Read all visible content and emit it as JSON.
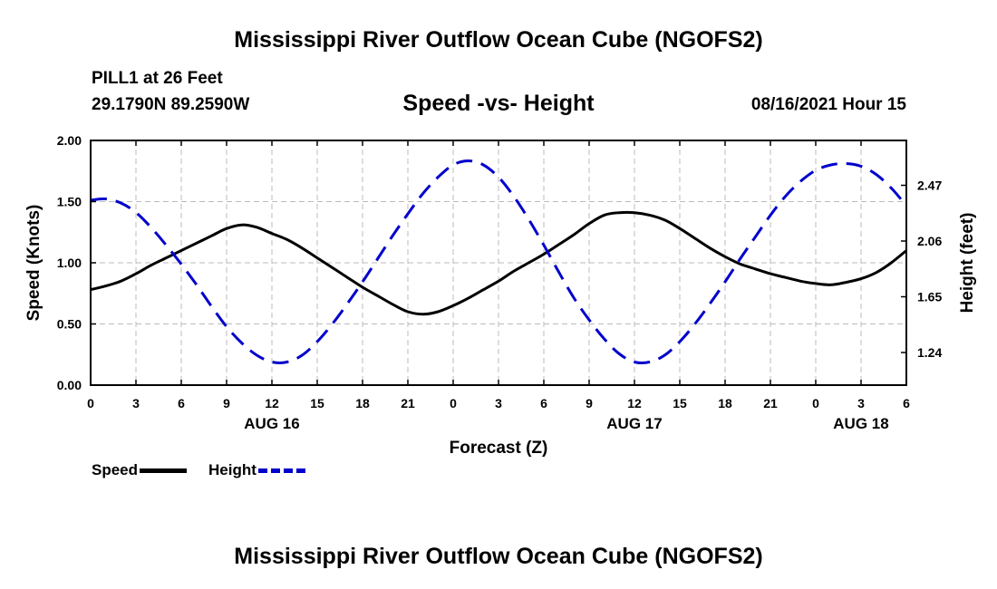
{
  "header": {
    "title": "Mississippi River Outflow Ocean Cube (NGOFS2)",
    "station": "PILL1 at 26 Feet",
    "coordinates": "29.1790N  89.2590W",
    "subtitle": "Speed -vs- Height",
    "datetime": "08/16/2021 Hour 15"
  },
  "footer": {
    "title": "Mississippi River Outflow Ocean Cube (NGOFS2)"
  },
  "legend": {
    "speed_label": "Speed",
    "height_label": "Height"
  },
  "colors": {
    "speed": "#000000",
    "height": "#0000cc",
    "grid": "#bbbbbb"
  },
  "chart_data": {
    "type": "line",
    "title": "Speed -vs- Height",
    "xlabel": "Forecast (Z)",
    "ylabel": "Speed (Knots)",
    "y2label": "Height (feet)",
    "grid": true,
    "legend_position": "bottom-left",
    "xlim": [
      0,
      54
    ],
    "ylim": [
      0,
      2.0
    ],
    "y2lim": [
      1.0,
      2.8
    ],
    "x_ticks": [
      0,
      3,
      6,
      9,
      12,
      15,
      18,
      21,
      24,
      27,
      30,
      33,
      36,
      39,
      42,
      45,
      48,
      51,
      54
    ],
    "x_tick_labels": [
      "0",
      "3",
      "6",
      "9",
      "12",
      "15",
      "18",
      "21",
      "0",
      "3",
      "6",
      "9",
      "12",
      "15",
      "18",
      "21",
      "0",
      "3",
      "6"
    ],
    "date_labels": [
      {
        "x": 12,
        "label": "AUG 16"
      },
      {
        "x": 36,
        "label": "AUG 17"
      },
      {
        "x": 51,
        "label": "AUG 18"
      }
    ],
    "y_ticks": [
      0,
      0.5,
      1.0,
      1.5,
      2.0
    ],
    "y_tick_labels": [
      "0.00",
      "0.50",
      "1.00",
      "1.50",
      "2.00"
    ],
    "y2_ticks": [
      1.24,
      1.65,
      2.06,
      2.47
    ],
    "y2_tick_labels": [
      "1.24",
      "1.65",
      "2.06",
      "2.47"
    ],
    "series": [
      {
        "name": "Speed",
        "axis": "left",
        "style": "solid",
        "x": [
          0,
          1,
          2,
          3,
          4,
          5,
          6,
          7,
          8,
          9,
          10,
          11,
          12,
          13,
          14,
          15,
          16,
          17,
          18,
          19,
          20,
          21,
          22,
          23,
          24,
          25,
          26,
          27,
          28,
          29,
          30,
          31,
          32,
          33,
          34,
          35,
          36,
          37,
          38,
          39,
          40,
          41,
          42,
          43,
          44,
          45,
          46,
          47,
          48,
          49,
          50,
          51,
          52,
          53,
          54
        ],
        "values": [
          0.78,
          0.81,
          0.85,
          0.91,
          0.98,
          1.04,
          1.1,
          1.16,
          1.22,
          1.28,
          1.31,
          1.29,
          1.24,
          1.19,
          1.12,
          1.04,
          0.96,
          0.88,
          0.8,
          0.73,
          0.66,
          0.6,
          0.58,
          0.6,
          0.65,
          0.71,
          0.78,
          0.85,
          0.93,
          1.0,
          1.07,
          1.15,
          1.23,
          1.32,
          1.39,
          1.41,
          1.41,
          1.39,
          1.35,
          1.28,
          1.2,
          1.12,
          1.05,
          0.99,
          0.95,
          0.91,
          0.88,
          0.85,
          0.83,
          0.82,
          0.84,
          0.87,
          0.92,
          1.0,
          1.1
        ]
      },
      {
        "name": "Height",
        "axis": "right",
        "style": "dashed",
        "x": [
          0,
          1,
          2,
          3,
          4,
          5,
          6,
          7,
          8,
          9,
          10,
          11,
          12,
          13,
          14,
          15,
          16,
          17,
          18,
          19,
          20,
          21,
          22,
          23,
          24,
          25,
          26,
          27,
          28,
          29,
          30,
          31,
          32,
          33,
          34,
          35,
          36,
          37,
          38,
          39,
          40,
          41,
          42,
          43,
          44,
          45,
          46,
          47,
          48,
          49,
          50,
          51,
          52,
          53,
          54
        ],
        "values": [
          2.36,
          2.37,
          2.34,
          2.27,
          2.16,
          2.03,
          1.89,
          1.74,
          1.58,
          1.43,
          1.31,
          1.22,
          1.17,
          1.17,
          1.22,
          1.32,
          1.45,
          1.6,
          1.76,
          1.93,
          2.1,
          2.26,
          2.41,
          2.53,
          2.62,
          2.65,
          2.62,
          2.53,
          2.39,
          2.22,
          2.03,
          1.83,
          1.64,
          1.48,
          1.34,
          1.23,
          1.17,
          1.17,
          1.22,
          1.32,
          1.45,
          1.6,
          1.76,
          1.93,
          2.09,
          2.25,
          2.39,
          2.5,
          2.58,
          2.62,
          2.63,
          2.61,
          2.55,
          2.45,
          2.32
        ]
      }
    ]
  }
}
